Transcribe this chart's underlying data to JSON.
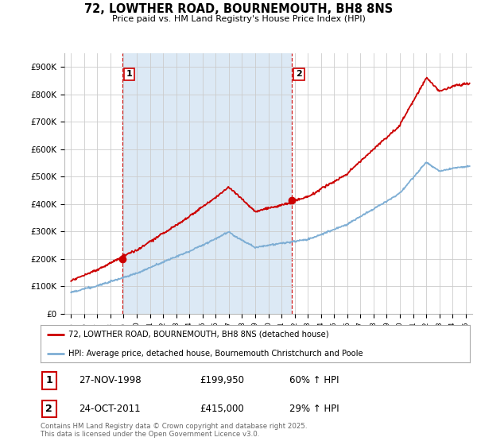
{
  "title": "72, LOWTHER ROAD, BOURNEMOUTH, BH8 8NS",
  "subtitle": "Price paid vs. HM Land Registry's House Price Index (HPI)",
  "ylim": [
    0,
    950000
  ],
  "yticks": [
    0,
    100000,
    200000,
    300000,
    400000,
    500000,
    600000,
    700000,
    800000,
    900000
  ],
  "ytick_labels": [
    "£0",
    "£100K",
    "£200K",
    "£300K",
    "£400K",
    "£500K",
    "£600K",
    "£700K",
    "£800K",
    "£900K"
  ],
  "sale1_date_num": 1998.9,
  "sale1_price": 199950,
  "sale1_label": "1",
  "sale1_date_str": "27-NOV-1998",
  "sale1_price_str": "£199,950",
  "sale1_hpi": "60% ↑ HPI",
  "sale2_date_num": 2011.8,
  "sale2_price": 415000,
  "sale2_label": "2",
  "sale2_date_str": "24-OCT-2011",
  "sale2_price_str": "£415,000",
  "sale2_hpi": "29% ↑ HPI",
  "line_color_red": "#cc0000",
  "line_color_blue": "#7eaed4",
  "fill_color_blue": "#dce9f5",
  "marker_color_red": "#cc0000",
  "vline_color": "#cc0000",
  "grid_color": "#cccccc",
  "background_color": "#ffffff",
  "legend_label_red": "72, LOWTHER ROAD, BOURNEMOUTH, BH8 8NS (detached house)",
  "legend_label_blue": "HPI: Average price, detached house, Bournemouth Christchurch and Poole",
  "footer": "Contains HM Land Registry data © Crown copyright and database right 2025.\nThis data is licensed under the Open Government Licence v3.0.",
  "xlim_start": 1994.5,
  "xlim_end": 2025.5
}
